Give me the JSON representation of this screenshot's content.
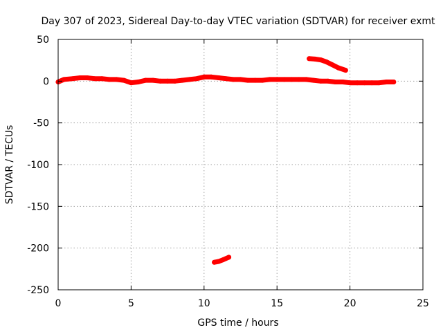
{
  "chart_data": {
    "type": "scatter",
    "title": "Day 307 of 2023, Sidereal Day-to-day VTEC variation (SDTVAR) for receiver exmt",
    "xlabel": "GPS time / hours",
    "ylabel": "SDTVAR / TECUs",
    "xlim": [
      0,
      25
    ],
    "ylim": [
      -250,
      50
    ],
    "xticks": [
      0,
      5,
      10,
      15,
      20,
      25
    ],
    "yticks": [
      50,
      0,
      -50,
      -100,
      -150,
      -200,
      -250
    ],
    "grid": true,
    "color": "#ff0000",
    "series": [
      {
        "name": "main",
        "x": [
          0.0,
          0.4,
          1.0,
          1.5,
          2.0,
          2.5,
          3.0,
          3.5,
          4.0,
          4.5,
          5.0,
          5.5,
          6.0,
          6.5,
          7.0,
          7.5,
          8.0,
          8.5,
          9.0,
          9.5,
          10.0,
          10.5,
          11.0,
          11.5,
          12.0,
          12.5,
          13.0,
          13.5,
          14.0,
          14.5,
          15.0,
          15.5,
          16.0,
          16.5,
          17.0,
          17.5,
          18.0,
          18.5,
          19.0,
          19.5,
          20.0,
          20.5,
          21.0,
          21.5,
          22.0,
          22.5,
          23.0
        ],
        "y": [
          -1,
          2,
          3,
          4,
          4,
          3,
          3,
          2,
          2,
          1,
          -2,
          -1,
          1,
          1,
          0,
          0,
          0,
          1,
          2,
          3,
          5,
          5,
          4,
          3,
          2,
          2,
          1,
          1,
          1,
          2,
          2,
          2,
          2,
          2,
          2,
          1,
          0,
          0,
          -1,
          -1,
          -2,
          -2,
          -2,
          -2,
          -2,
          -1,
          -1
        ]
      },
      {
        "name": "arc-high",
        "x": [
          17.2,
          17.6,
          18.0,
          18.4,
          18.8,
          19.2,
          19.7
        ],
        "y": [
          27,
          26.5,
          25.5,
          23,
          19.5,
          16,
          13
        ]
      },
      {
        "name": "arc-low",
        "x": [
          10.7,
          11.0,
          11.3,
          11.7
        ],
        "y": [
          -217,
          -216,
          -214,
          -211
        ]
      }
    ]
  }
}
